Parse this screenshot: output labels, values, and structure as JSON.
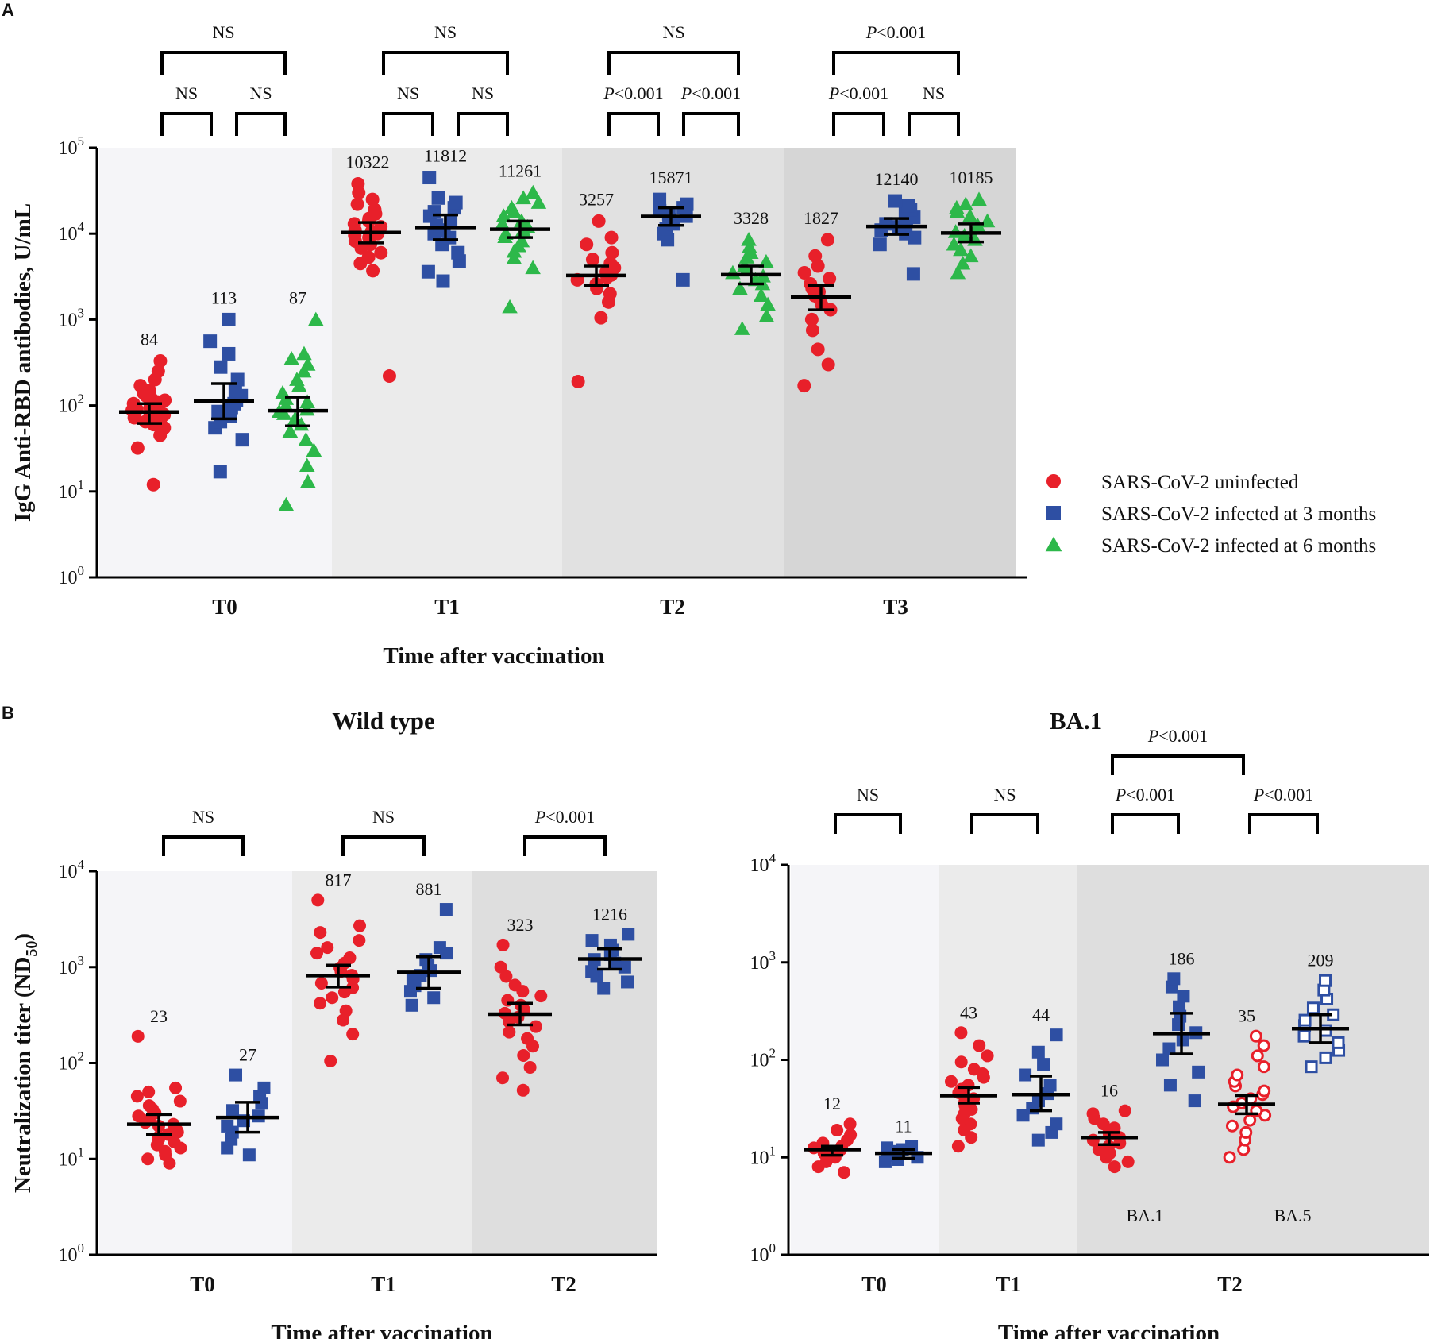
{
  "chart_data": [
    {
      "id": "A",
      "panel_label": "A",
      "type": "scatter",
      "scale": "log10",
      "title": "",
      "xlabel": "Time after vaccination",
      "ylabel": "IgG Anti-RBD antibodies, U/mL",
      "ylim": [
        1,
        100000
      ],
      "groups": [
        {
          "name": "T0",
          "label": "T0",
          "shade": "#f5f5f8"
        },
        {
          "name": "T1",
          "label": "T1",
          "shade": "#ebebeb"
        },
        {
          "name": "T2",
          "label": "T2",
          "shade": "#e1e1e1"
        },
        {
          "name": "T3",
          "label": "T3",
          "shade": "#d6d6d6"
        }
      ],
      "legend": [
        {
          "label": "SARS-CoV-2 uninfected",
          "color": "#e8202a",
          "marker": "circle"
        },
        {
          "label": "SARS-CoV-2 infected at 3 months",
          "color": "#2e4fa3",
          "marker": "square"
        },
        {
          "label": "SARS-CoV-2 infected at 6 months",
          "color": "#2db84a",
          "marker": "triangle"
        }
      ],
      "series": [
        {
          "group": 0,
          "color": "#e8202a",
          "marker": "circle",
          "gmt": 84,
          "label": "84",
          "ci": [
            62,
            105
          ],
          "min": 12,
          "max": 330,
          "points": [
            12,
            32,
            45,
            55,
            60,
            65,
            70,
            72,
            75,
            78,
            80,
            82,
            85,
            88,
            90,
            92,
            95,
            100,
            105,
            110,
            115,
            120,
            130,
            140,
            150,
            170,
            200,
            250,
            330
          ]
        },
        {
          "group": 0,
          "color": "#2e4fa3",
          "marker": "square",
          "gmt": 113,
          "label": "113",
          "ci": [
            70,
            180
          ],
          "min": 17,
          "max": 1000,
          "points": [
            17,
            40,
            55,
            65,
            75,
            85,
            95,
            105,
            115,
            130,
            150,
            200,
            280,
            400,
            560,
            1000
          ]
        },
        {
          "group": 0,
          "color": "#2db84a",
          "marker": "triangle",
          "gmt": 87,
          "label": "87",
          "ci": [
            58,
            125
          ],
          "min": 7,
          "max": 1000,
          "points": [
            7,
            13,
            20,
            30,
            40,
            50,
            60,
            70,
            80,
            85,
            90,
            100,
            110,
            120,
            140,
            170,
            200,
            250,
            300,
            350,
            400,
            1000
          ]
        },
        {
          "group": 1,
          "color": "#e8202a",
          "marker": "circle",
          "gmt": 10322,
          "label": "10322",
          "ci": [
            7800,
            13500
          ],
          "min": 220,
          "max": 38000,
          "points": [
            220,
            3700,
            4500,
            5300,
            6000,
            6800,
            7500,
            8200,
            9000,
            9500,
            10000,
            10500,
            11000,
            12000,
            13000,
            14000,
            15000,
            17000,
            19000,
            22000,
            25000,
            30000,
            38000
          ]
        },
        {
          "group": 1,
          "color": "#2e4fa3",
          "marker": "square",
          "gmt": 11812,
          "label": "11812",
          "ci": [
            8500,
            16500
          ],
          "min": 2800,
          "max": 45000,
          "points": [
            2800,
            3600,
            4800,
            6000,
            7500,
            9000,
            10000,
            11000,
            12500,
            14000,
            16000,
            18000,
            20000,
            23000,
            26000,
            45000
          ]
        },
        {
          "group": 1,
          "color": "#2db84a",
          "marker": "triangle",
          "gmt": 11261,
          "label": "11261",
          "ci": [
            9000,
            14000
          ],
          "min": 1400,
          "max": 30000,
          "points": [
            1400,
            4000,
            5200,
            6200,
            7200,
            8200,
            9200,
            10000,
            11000,
            12000,
            13000,
            14000,
            16000,
            18000,
            20000,
            23000,
            26000,
            30000
          ]
        },
        {
          "group": 2,
          "color": "#e8202a",
          "marker": "circle",
          "gmt": 3257,
          "label": "3257",
          "ci": [
            2500,
            4200
          ],
          "min": 190,
          "max": 14000,
          "points": [
            190,
            1050,
            1600,
            2000,
            2300,
            2600,
            2900,
            3100,
            3300,
            3600,
            4000,
            4500,
            5000,
            6000,
            7500,
            9000,
            14000
          ]
        },
        {
          "group": 2,
          "color": "#2e4fa3",
          "marker": "square",
          "gmt": 15871,
          "label": "15871",
          "ci": [
            12500,
            20000
          ],
          "min": 2900,
          "max": 25000,
          "points": [
            2900,
            8500,
            10000,
            11500,
            13000,
            14500,
            16000,
            17000,
            18500,
            20000,
            22000,
            25000
          ]
        },
        {
          "group": 2,
          "color": "#2db84a",
          "marker": "triangle",
          "gmt": 3328,
          "label": "3328",
          "ci": [
            2600,
            4200
          ],
          "min": 780,
          "max": 8500,
          "points": [
            780,
            1100,
            1500,
            1900,
            2300,
            2600,
            2900,
            3200,
            3500,
            3800,
            4200,
            4700,
            5300,
            6000,
            7000,
            8500
          ]
        },
        {
          "group": 3,
          "color": "#e8202a",
          "marker": "circle",
          "gmt": 1827,
          "label": "1827",
          "ci": [
            1300,
            2500
          ],
          "min": 170,
          "max": 8500,
          "points": [
            170,
            300,
            450,
            750,
            1000,
            1300,
            1500,
            1700,
            1900,
            2100,
            2300,
            2600,
            3000,
            3500,
            4200,
            5500,
            8500
          ]
        },
        {
          "group": 3,
          "color": "#2e4fa3",
          "marker": "square",
          "gmt": 12140,
          "label": "12140",
          "ci": [
            9800,
            15000
          ],
          "min": 3400,
          "max": 24000,
          "points": [
            3400,
            7500,
            9000,
            10000,
            11000,
            12000,
            13000,
            14000,
            15500,
            17000,
            19000,
            21000,
            24000
          ]
        },
        {
          "group": 3,
          "color": "#2db84a",
          "marker": "triangle",
          "gmt": 10185,
          "label": "10185",
          "ci": [
            8000,
            13000
          ],
          "min": 3500,
          "max": 25000,
          "points": [
            3500,
            4500,
            5500,
            6500,
            7500,
            8500,
            9500,
            10500,
            11500,
            12500,
            14000,
            16000,
            18000,
            20000,
            22000,
            25000
          ]
        }
      ],
      "comparisons": [
        {
          "from": 0,
          "to": 1,
          "level": 1,
          "label": "NS"
        },
        {
          "from": 1,
          "to": 2,
          "level": 1,
          "label": "NS"
        },
        {
          "from": 0,
          "to": 2,
          "level": 2,
          "label": "NS"
        },
        {
          "from": 3,
          "to": 4,
          "level": 1,
          "label": "NS"
        },
        {
          "from": 4,
          "to": 5,
          "level": 1,
          "label": "NS"
        },
        {
          "from": 3,
          "to": 5,
          "level": 2,
          "label": "NS"
        },
        {
          "from": 6,
          "to": 7,
          "level": 1,
          "label": "P<0.001"
        },
        {
          "from": 7,
          "to": 8,
          "level": 1,
          "label": "P<0.001"
        },
        {
          "from": 6,
          "to": 8,
          "level": 2,
          "label": "NS"
        },
        {
          "from": 9,
          "to": 10,
          "level": 1,
          "label": "P<0.001"
        },
        {
          "from": 10,
          "to": 11,
          "level": 1,
          "label": "NS"
        },
        {
          "from": 9,
          "to": 11,
          "level": 2,
          "label": "P<0.001"
        }
      ]
    },
    {
      "id": "B1",
      "panel_label": "B",
      "type": "scatter",
      "scale": "log10",
      "title": "Wild type",
      "xlabel": "Time after vaccination",
      "ylabel": "Neutralization titer (ND",
      "ylabel_sub": "50",
      "ylabel_end": ")",
      "ylim": [
        1,
        10000
      ],
      "groups": [
        {
          "name": "T0",
          "label": "T0",
          "shade": "#f5f5f8"
        },
        {
          "name": "T1",
          "label": "T1",
          "shade": "#ebebeb"
        },
        {
          "name": "T2",
          "label": "T2",
          "shade": "#dedede"
        }
      ],
      "series": [
        {
          "group": 0,
          "color": "#e8202a",
          "marker": "circle",
          "gmt": 23,
          "label": "23",
          "ci": [
            18,
            29
          ],
          "min": 9,
          "max": 190,
          "points": [
            9,
            10,
            11,
            12,
            13,
            14,
            15,
            16,
            17,
            18,
            19,
            20,
            21,
            22,
            23,
            24,
            26,
            28,
            30,
            33,
            36,
            40,
            45,
            50,
            55,
            190
          ]
        },
        {
          "group": 0,
          "color": "#2e4fa3",
          "marker": "square",
          "gmt": 27,
          "label": "27",
          "ci": [
            19,
            39
          ],
          "min": 11,
          "max": 75,
          "points": [
            11,
            13,
            16,
            19,
            22,
            25,
            28,
            32,
            38,
            45,
            55,
            75
          ]
        },
        {
          "group": 1,
          "color": "#e8202a",
          "marker": "circle",
          "gmt": 817,
          "label": "817",
          "ci": [
            620,
            1050
          ],
          "min": 105,
          "max": 5000,
          "points": [
            105,
            200,
            280,
            350,
            420,
            480,
            550,
            610,
            680,
            750,
            820,
            900,
            980,
            1100,
            1250,
            1400,
            1600,
            1900,
            2300,
            2700,
            5000
          ]
        },
        {
          "group": 1,
          "color": "#2e4fa3",
          "marker": "square",
          "gmt": 881,
          "label": "881",
          "ci": [
            600,
            1280
          ],
          "min": 400,
          "max": 4000,
          "points": [
            400,
            480,
            560,
            640,
            720,
            820,
            920,
            1050,
            1200,
            1400,
            1600,
            4000
          ]
        },
        {
          "group": 2,
          "color": "#e8202a",
          "marker": "circle",
          "gmt": 323,
          "label": "323",
          "ci": [
            250,
            420
          ],
          "min": 52,
          "max": 1700,
          "points": [
            52,
            70,
            90,
            120,
            150,
            180,
            210,
            240,
            270,
            300,
            330,
            360,
            400,
            450,
            500,
            560,
            650,
            800,
            1000,
            1700
          ]
        },
        {
          "group": 2,
          "color": "#2e4fa3",
          "marker": "square",
          "gmt": 1216,
          "label": "1216",
          "ci": [
            950,
            1550
          ],
          "min": 600,
          "max": 2200,
          "points": [
            600,
            700,
            800,
            900,
            1000,
            1100,
            1200,
            1350,
            1500,
            1700,
            1900,
            2200
          ]
        }
      ],
      "comparisons": [
        {
          "from": 0,
          "to": 1,
          "level": 1,
          "label": "NS"
        },
        {
          "from": 2,
          "to": 3,
          "level": 1,
          "label": "NS"
        },
        {
          "from": 4,
          "to": 5,
          "level": 1,
          "label": "P<0.001"
        }
      ]
    },
    {
      "id": "B2",
      "panel_label": "",
      "type": "scatter",
      "scale": "log10",
      "title": "BA.1",
      "xlabel": "Time after vaccination",
      "ylabel": "",
      "ylim": [
        1,
        10000
      ],
      "groups": [
        {
          "name": "T0",
          "label": "T0",
          "shade": "#f5f5f8"
        },
        {
          "name": "T1",
          "label": "T1",
          "shade": "#ebebeb"
        },
        {
          "name": "T2",
          "label": "T2",
          "shade": "#dedede"
        }
      ],
      "sublabels": [
        "BA.1",
        "BA.5"
      ],
      "series": [
        {
          "group": 0,
          "color": "#e8202a",
          "marker": "circle",
          "gmt": 12,
          "label": "12",
          "ci": [
            10.5,
            13
          ],
          "min": 7,
          "max": 22,
          "points": [
            7,
            8,
            9,
            10,
            10.5,
            11,
            11.5,
            12,
            12.5,
            13,
            14,
            15,
            17,
            19,
            22
          ]
        },
        {
          "group": 0,
          "color": "#2e4fa3",
          "marker": "square",
          "gmt": 11,
          "label": "11",
          "ci": [
            9.8,
            12
          ],
          "min": 9,
          "max": 13,
          "points": [
            9,
            9.5,
            10,
            10.5,
            11,
            11.5,
            12,
            12.5,
            13
          ]
        },
        {
          "group": 1,
          "color": "#e8202a",
          "marker": "circle",
          "gmt": 43,
          "label": "43",
          "ci": [
            36,
            52
          ],
          "min": 13,
          "max": 190,
          "points": [
            13,
            16,
            19,
            22,
            25,
            28,
            31,
            34,
            37,
            40,
            43,
            46,
            50,
            55,
            60,
            66,
            72,
            80,
            95,
            110,
            140,
            190
          ]
        },
        {
          "group": 1,
          "color": "#2e4fa3",
          "marker": "square",
          "gmt": 44,
          "label": "44",
          "ci": [
            30,
            68
          ],
          "min": 15,
          "max": 180,
          "points": [
            15,
            18,
            22,
            27,
            32,
            38,
            45,
            55,
            70,
            90,
            120,
            180
          ]
        },
        {
          "group": 2,
          "color": "#e8202a",
          "marker": "circle",
          "gmt": 16,
          "label": "16",
          "ci": [
            13.5,
            18
          ],
          "min": 8,
          "max": 30,
          "points": [
            8,
            9,
            10,
            11,
            12,
            13,
            14,
            15,
            16,
            17,
            18,
            19,
            20,
            22,
            25,
            28,
            30
          ]
        },
        {
          "group": 2,
          "color": "#2e4fa3",
          "marker": "square",
          "gmt": 186,
          "label": "186",
          "ci": [
            115,
            300
          ],
          "min": 38,
          "max": 680,
          "points": [
            38,
            55,
            75,
            100,
            130,
            160,
            190,
            230,
            280,
            350,
            450,
            560,
            680
          ]
        },
        {
          "group": 2,
          "color": "#e8202a",
          "marker": "circle-open",
          "gmt": 35,
          "label": "35",
          "ci": [
            28,
            43
          ],
          "min": 10,
          "max": 175,
          "points": [
            10,
            12,
            15,
            18,
            21,
            24,
            27,
            30,
            33,
            36,
            40,
            44,
            48,
            54,
            60,
            70,
            85,
            110,
            140,
            175
          ]
        },
        {
          "group": 2,
          "color": "#2e4fa3",
          "marker": "square-open",
          "gmt": 209,
          "label": "209",
          "ci": [
            150,
            290
          ],
          "min": 85,
          "max": 650,
          "points": [
            85,
            105,
            125,
            150,
            175,
            200,
            225,
            255,
            290,
            340,
            420,
            520,
            650
          ]
        }
      ],
      "comparisons": [
        {
          "from": 0,
          "to": 1,
          "level": 1,
          "label": "NS"
        },
        {
          "from": 2,
          "to": 3,
          "level": 1,
          "label": "NS"
        },
        {
          "from": 4,
          "to": 5,
          "level": 1,
          "label": "P<0.001"
        },
        {
          "from": 6,
          "to": 7,
          "level": 1,
          "label": "P<0.001"
        },
        {
          "from": 4,
          "to": 6,
          "level": 2,
          "label": "P<0.001"
        }
      ]
    }
  ]
}
